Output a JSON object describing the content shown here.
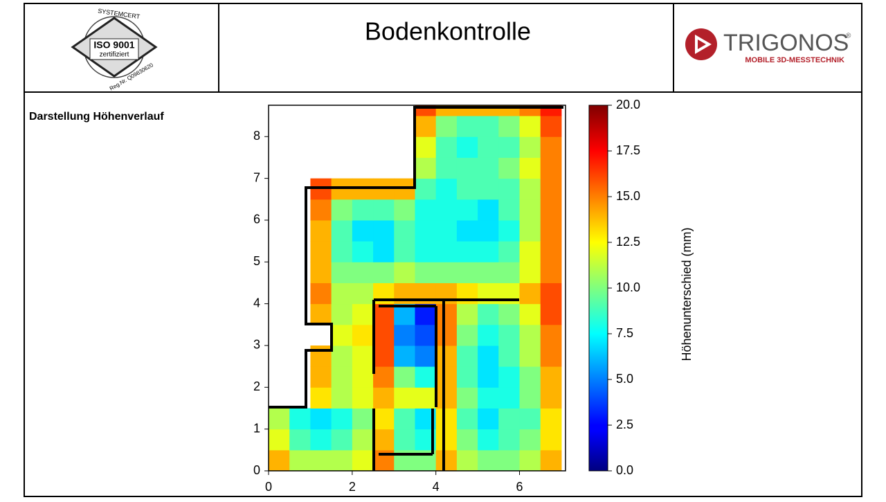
{
  "header": {
    "certification": {
      "issuer": "SYSTEMCERT",
      "standard": "ISO 9001",
      "status": "zertifiziert",
      "registration": "Reg.Nr. Q09830620"
    },
    "title": "Bodenkontrolle",
    "company": {
      "name": "TRIGONOS",
      "trademark": "®",
      "tagline": "MOBILE 3D-MESSTECHNIK"
    }
  },
  "section_label": "Darstellung Höhenverlauf",
  "chart_data": {
    "type": "heatmap",
    "x": [
      0,
      0.5,
      1,
      1.5,
      2,
      2.5,
      3,
      3.5,
      4,
      4.5,
      5,
      5.5,
      6,
      6.5
    ],
    "y": [
      0,
      0.5,
      1,
      1.5,
      2,
      2.5,
      3,
      3.5,
      4,
      4.5,
      5,
      5.5,
      6,
      6.5,
      7,
      7.5,
      8,
      8.5
    ],
    "z": [
      [
        14,
        11,
        11,
        11,
        12,
        15,
        10,
        10,
        14,
        11,
        10,
        10,
        11,
        14
      ],
      [
        12,
        9,
        8,
        9,
        11,
        14,
        9,
        8,
        13,
        10,
        8,
        9,
        10,
        13
      ],
      [
        11,
        8,
        7,
        8,
        10,
        13,
        9,
        7,
        13,
        9,
        7,
        9,
        9,
        13
      ],
      [
        null,
        null,
        13,
        11,
        12,
        14,
        12,
        12,
        14,
        10,
        8,
        8,
        10,
        14
      ],
      [
        null,
        null,
        14,
        11,
        12,
        15,
        10,
        8,
        14,
        9,
        7,
        8,
        10,
        14
      ],
      [
        null,
        null,
        14,
        11,
        12,
        16,
        6,
        5,
        14,
        9,
        7,
        9,
        11,
        15
      ],
      [
        null,
        null,
        null,
        12,
        13,
        16,
        5,
        4,
        15,
        10,
        8,
        9,
        11,
        15
      ],
      [
        null,
        null,
        14,
        11,
        12,
        16,
        6,
        3,
        15,
        11,
        9,
        10,
        12,
        16
      ],
      [
        null,
        null,
        15,
        11,
        11,
        13,
        14,
        14,
        14,
        13,
        12,
        12,
        14,
        16
      ],
      [
        null,
        null,
        14,
        10,
        10,
        10,
        11,
        10,
        10,
        10,
        10,
        10,
        12,
        15
      ],
      [
        null,
        null,
        14,
        9,
        8,
        7,
        9,
        8,
        8,
        8,
        8,
        9,
        12,
        15
      ],
      [
        null,
        null,
        14,
        9,
        7,
        7,
        9,
        8,
        8,
        7,
        7,
        8,
        11,
        15
      ],
      [
        null,
        null,
        15,
        10,
        9,
        9,
        10,
        8,
        8,
        8,
        7,
        9,
        11,
        15
      ],
      [
        null,
        null,
        16,
        14,
        14,
        14,
        14,
        9,
        8,
        9,
        9,
        9,
        11,
        15
      ],
      [
        null,
        null,
        null,
        null,
        null,
        null,
        null,
        11,
        9,
        9,
        9,
        10,
        12,
        15
      ],
      [
        null,
        null,
        null,
        null,
        null,
        null,
        null,
        12,
        9,
        8,
        9,
        9,
        11,
        15
      ],
      [
        null,
        null,
        null,
        null,
        null,
        null,
        null,
        14,
        10,
        9,
        9,
        10,
        12,
        16
      ],
      [
        null,
        null,
        null,
        null,
        null,
        null,
        null,
        16,
        14,
        14,
        14,
        14,
        15,
        17
      ]
    ],
    "xlim": [
      0,
      7.1
    ],
    "ylim": [
      0,
      8.75
    ],
    "xticks": [
      0,
      2,
      4,
      6
    ],
    "yticks": [
      0,
      1,
      2,
      3,
      4,
      5,
      6,
      7,
      8
    ],
    "colorbar": {
      "label": "Höhenunterschied (mm)",
      "colormap": "jet",
      "lim": [
        0,
        20
      ],
      "ticks": [
        {
          "value": 0,
          "label": "0.0"
        },
        2.5,
        {
          "value": 5,
          "label": "5.0"
        },
        7.5,
        {
          "value": 10,
          "label": "10.0"
        },
        12.5,
        {
          "value": 15,
          "label": "15.0"
        },
        17.5,
        {
          "value": 20,
          "label": "20.0"
        }
      ]
    }
  }
}
